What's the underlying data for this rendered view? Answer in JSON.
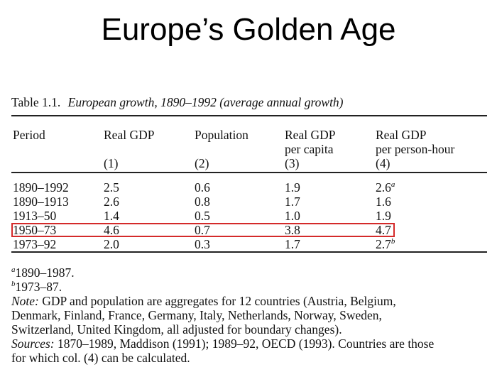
{
  "slide": {
    "title": "Europe’s Golden Age"
  },
  "table": {
    "label": "Table 1.1.",
    "caption": "European growth, 1890–1992 (average annual growth)",
    "columns": [
      {
        "name": "Period",
        "sub": "",
        "idx": ""
      },
      {
        "name": "Real GDP",
        "sub": "",
        "idx": "(1)"
      },
      {
        "name": "Population",
        "sub": "",
        "idx": "(2)"
      },
      {
        "name": "Real GDP",
        "sub": "per capita",
        "idx": "(3)"
      },
      {
        "name": "Real GDP",
        "sub": "per person-hour",
        "idx": "(4)"
      }
    ],
    "rows": [
      {
        "period": "1890–1992",
        "gdp": "2.5",
        "pop": "0.6",
        "gdp_pc": "1.9",
        "gdp_ph": "2.6",
        "mark": "a"
      },
      {
        "period": "1890–1913",
        "gdp": "2.6",
        "pop": "0.8",
        "gdp_pc": "1.7",
        "gdp_ph": "1.6",
        "mark": ""
      },
      {
        "period": "1913–50",
        "gdp": "1.4",
        "pop": "0.5",
        "gdp_pc": "1.0",
        "gdp_ph": "1.9",
        "mark": ""
      },
      {
        "period": "1950–73",
        "gdp": "4.6",
        "pop": "0.7",
        "gdp_pc": "3.8",
        "gdp_ph": "4.7",
        "mark": ""
      },
      {
        "period": "1973–92",
        "gdp": "2.0",
        "pop": "0.3",
        "gdp_pc": "1.7",
        "gdp_ph": "2.7",
        "mark": "b"
      }
    ],
    "highlight_color": "#d42a2a"
  },
  "notes": {
    "fn_a_mark": "a",
    "fn_a": "1890–1987.",
    "fn_b_mark": "b",
    "fn_b": "1973–87.",
    "note_label": "Note:",
    "note_line1": " GDP and population are aggregates for 12 countries (Austria, Belgium,",
    "note_line2": "Denmark, Finland, France, Germany, Italy, Netherlands, Norway, Sweden,",
    "note_line3": "Switzerland, United Kingdom, all adjusted for boundary changes).",
    "sources_label": "Sources:",
    "sources_line1": " 1870–1989, Maddison (1991); 1989–92, OECD (1993). Countries are those",
    "sources_line2": "for which col. (4) can be calculated."
  }
}
